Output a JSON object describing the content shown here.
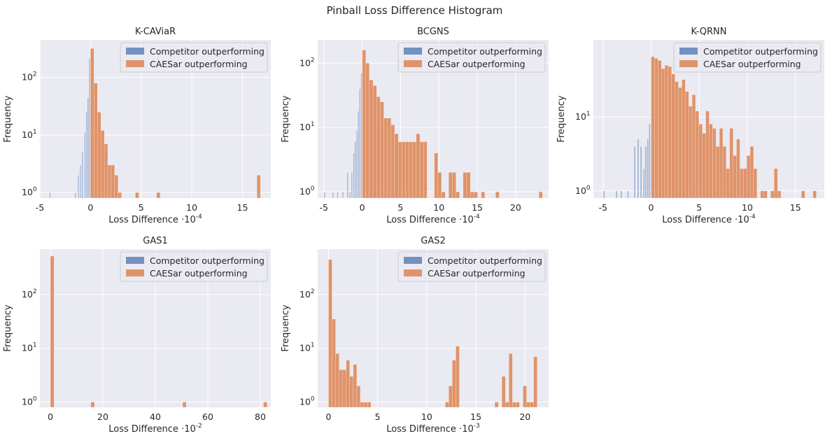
{
  "figure": {
    "title": "Pinball Loss Difference Histogram",
    "colors": {
      "background": "#eaeaf2",
      "grid": "#ffffff",
      "competitor": "#4c72b0",
      "caesar": "#dd8452"
    }
  },
  "chart_data": [
    {
      "type": "bar",
      "title": "K-CAViaR",
      "xlabel": "Loss Difference",
      "xlabel_exp": "-4",
      "ylabel": "Frequency",
      "yscale": "log",
      "xlim": [
        -5,
        17.8
      ],
      "ylim_log": [
        0.8,
        450
      ],
      "xticks": [
        -5,
        0,
        5,
        10,
        15
      ],
      "xtick_labels": [
        "-5",
        "0",
        "5",
        "10",
        "15"
      ],
      "ytick_exponents": [
        0,
        1,
        2
      ],
      "grid": true,
      "legend": {
        "placement": "top-right",
        "entries": [
          "Competitor outperforming",
          "CAESar outperforming"
        ]
      },
      "series": [
        {
          "name": "Competitor outperforming",
          "bin_width": 0.12,
          "x": [
            -4.0,
            -1.5,
            -1.2,
            -1.0,
            -0.8,
            -0.55,
            -0.4,
            -0.25,
            -0.1
          ],
          "counts": [
            1,
            1,
            2,
            3,
            5,
            11,
            25,
            45,
            210
          ]
        },
        {
          "name": "CAESar outperforming",
          "bin_width": 0.34,
          "x": [
            0.17,
            0.51,
            0.85,
            1.19,
            1.53,
            1.87,
            2.21,
            2.55,
            2.89,
            4.6,
            6.7,
            16.6
          ],
          "counts": [
            320,
            80,
            25,
            12,
            7,
            3,
            3,
            2,
            1,
            1,
            1,
            2
          ]
        }
      ]
    },
    {
      "type": "bar",
      "title": "BCGNS",
      "xlabel": "Loss Difference",
      "xlabel_exp": "-4",
      "ylabel": "Frequency",
      "yscale": "log",
      "xlim": [
        -5.8,
        24.3
      ],
      "ylim_log": [
        0.8,
        230
      ],
      "xticks": [
        -5,
        0,
        5,
        10,
        15,
        20
      ],
      "xtick_labels": [
        "-5",
        "0",
        "5",
        "10",
        "15",
        "20"
      ],
      "ytick_exponents": [
        0,
        1,
        2
      ],
      "grid": true,
      "legend": {
        "placement": "top-right",
        "entries": [
          "Competitor outperforming",
          "CAESar outperforming"
        ]
      },
      "series": [
        {
          "name": "Competitor outperforming",
          "bin_width": 0.15,
          "x": [
            -4.9,
            -3.8,
            -3.2,
            -2.5,
            -1.9,
            -1.6,
            -1.35,
            -1.1,
            -0.9,
            -0.7,
            -0.5,
            -0.3,
            -0.1
          ],
          "counts": [
            1,
            1,
            1,
            1,
            2,
            1,
            2,
            4,
            6,
            9,
            18,
            40,
            70
          ]
        },
        {
          "name": "CAESar outperforming",
          "bin_width": 0.47,
          "x": [
            0.235,
            0.705,
            1.175,
            1.645,
            2.115,
            2.585,
            3.055,
            3.525,
            3.995,
            4.465,
            4.935,
            5.405,
            5.875,
            6.345,
            6.815,
            7.285,
            7.755,
            8.225,
            9.635,
            10.105,
            10.575,
            11.515,
            11.985,
            12.455,
            13.395,
            13.865,
            14.335,
            14.805,
            15.745,
            17.625,
            23.265
          ],
          "counts": [
            160,
            100,
            55,
            45,
            30,
            25,
            14,
            14,
            11,
            8,
            6,
            6,
            6,
            6,
            6,
            8,
            6,
            6,
            4,
            2,
            1,
            2,
            2,
            1,
            2,
            2,
            1,
            1,
            1,
            1,
            1
          ]
        }
      ]
    },
    {
      "type": "bar",
      "title": "K-QRNN",
      "xlabel": "Loss Difference",
      "xlabel_exp": "-4",
      "ylabel": "Frequency",
      "yscale": "log",
      "xlim": [
        -6,
        18
      ],
      "ylim_log": [
        0.8,
        110
      ],
      "xticks": [
        -5,
        0,
        5,
        10,
        15
      ],
      "xtick_labels": [
        "-5",
        "0",
        "5",
        "10",
        "15"
      ],
      "ytick_exponents": [
        0,
        1
      ],
      "grid": true,
      "legend": {
        "placement": "top-right",
        "entries": [
          "Competitor outperforming",
          "CAESar outperforming"
        ]
      },
      "series": [
        {
          "name": "Competitor outperforming",
          "bin_width": 0.15,
          "x": [
            -4.9,
            -3.6,
            -3.1,
            -2.4,
            -1.7,
            -1.35,
            -1.05,
            -0.75,
            -0.55,
            -0.35,
            -0.15
          ],
          "counts": [
            1,
            1,
            1,
            1,
            4,
            5,
            4,
            2,
            4,
            5,
            8
          ]
        },
        {
          "name": "CAESar outperforming",
          "bin_width": 0.355,
          "x": [
            0.1775,
            0.5325,
            0.8875,
            1.2425,
            1.5975,
            1.9525,
            2.3075,
            2.6625,
            3.0175,
            3.3725,
            3.7275,
            4.0825,
            4.4375,
            4.7925,
            5.1475,
            5.5025,
            5.8575,
            6.2125,
            6.5675,
            6.9225,
            7.2775,
            7.6325,
            7.9875,
            8.3425,
            8.6975,
            9.0525,
            9.4075,
            9.7625,
            10.1175,
            10.4725,
            10.8275,
            11.5375,
            11.8925,
            12.6025,
            12.9575,
            13.3125,
            15.7975,
            17.0
          ],
          "counts": [
            65,
            62,
            58,
            45,
            50,
            48,
            38,
            30,
            25,
            32,
            22,
            14,
            20,
            12,
            8,
            6,
            12,
            8,
            7,
            4,
            7,
            4,
            2,
            7,
            3,
            5,
            2,
            2,
            3,
            4,
            2,
            1,
            1,
            1,
            2,
            1,
            1,
            1
          ]
        }
      ]
    },
    {
      "type": "bar",
      "title": "GAS1",
      "xlabel": "Loss Difference",
      "xlabel_exp": "-2",
      "ylabel": "Frequency",
      "yscale": "log",
      "xlim": [
        -4,
        84
      ],
      "ylim_log": [
        0.8,
        700
      ],
      "xticks": [
        0,
        20,
        40,
        60,
        80
      ],
      "xtick_labels": [
        "0",
        "20",
        "40",
        "60",
        "80"
      ],
      "ytick_exponents": [
        0,
        1,
        2
      ],
      "grid": true,
      "legend": {
        "placement": "top-right",
        "entries": [
          "Competitor outperforming",
          "CAESar outperforming"
        ]
      },
      "series": [
        {
          "name": "Competitor outperforming",
          "bin_width": 1.4,
          "x": [],
          "counts": []
        },
        {
          "name": "CAESar outperforming",
          "bin_width": 1.4,
          "x": [
            0.7,
            16.1,
            51.1,
            81.9
          ],
          "counts": [
            520,
            1,
            1,
            1
          ]
        }
      ]
    },
    {
      "type": "bar",
      "title": "GAS2",
      "xlabel": "Loss Difference",
      "xlabel_exp": "-3",
      "ylabel": "Frequency",
      "yscale": "log",
      "xlim": [
        -1.1,
        22.4
      ],
      "ylim_log": [
        0.8,
        700
      ],
      "xticks": [
        0,
        5,
        10,
        15,
        20
      ],
      "xtick_labels": [
        "0",
        "5",
        "10",
        "15",
        "20"
      ],
      "ytick_exponents": [
        0,
        1,
        2
      ],
      "grid": true,
      "legend": {
        "placement": "top-right",
        "entries": [
          "Competitor outperforming",
          "CAESar outperforming"
        ]
      },
      "series": [
        {
          "name": "Competitor outperforming",
          "bin_width": 0.2,
          "x": [],
          "counts": []
        },
        {
          "name": "CAESar outperforming",
          "bin_width": 0.36,
          "x": [
            0.18,
            0.54,
            0.9,
            1.26,
            1.62,
            1.98,
            2.34,
            2.7,
            3.06,
            3.42,
            3.78,
            4.14,
            12.06,
            12.42,
            12.78,
            13.14,
            17.1,
            17.82,
            18.18,
            18.54,
            18.9,
            19.26,
            19.98,
            20.34,
            20.7,
            21.06
          ],
          "counts": [
            450,
            35,
            8,
            4,
            4,
            6,
            3,
            5,
            2,
            1,
            1,
            1,
            1,
            2,
            6,
            11,
            1,
            3,
            1,
            8,
            1,
            1,
            2,
            1,
            1,
            7
          ]
        }
      ]
    }
  ]
}
